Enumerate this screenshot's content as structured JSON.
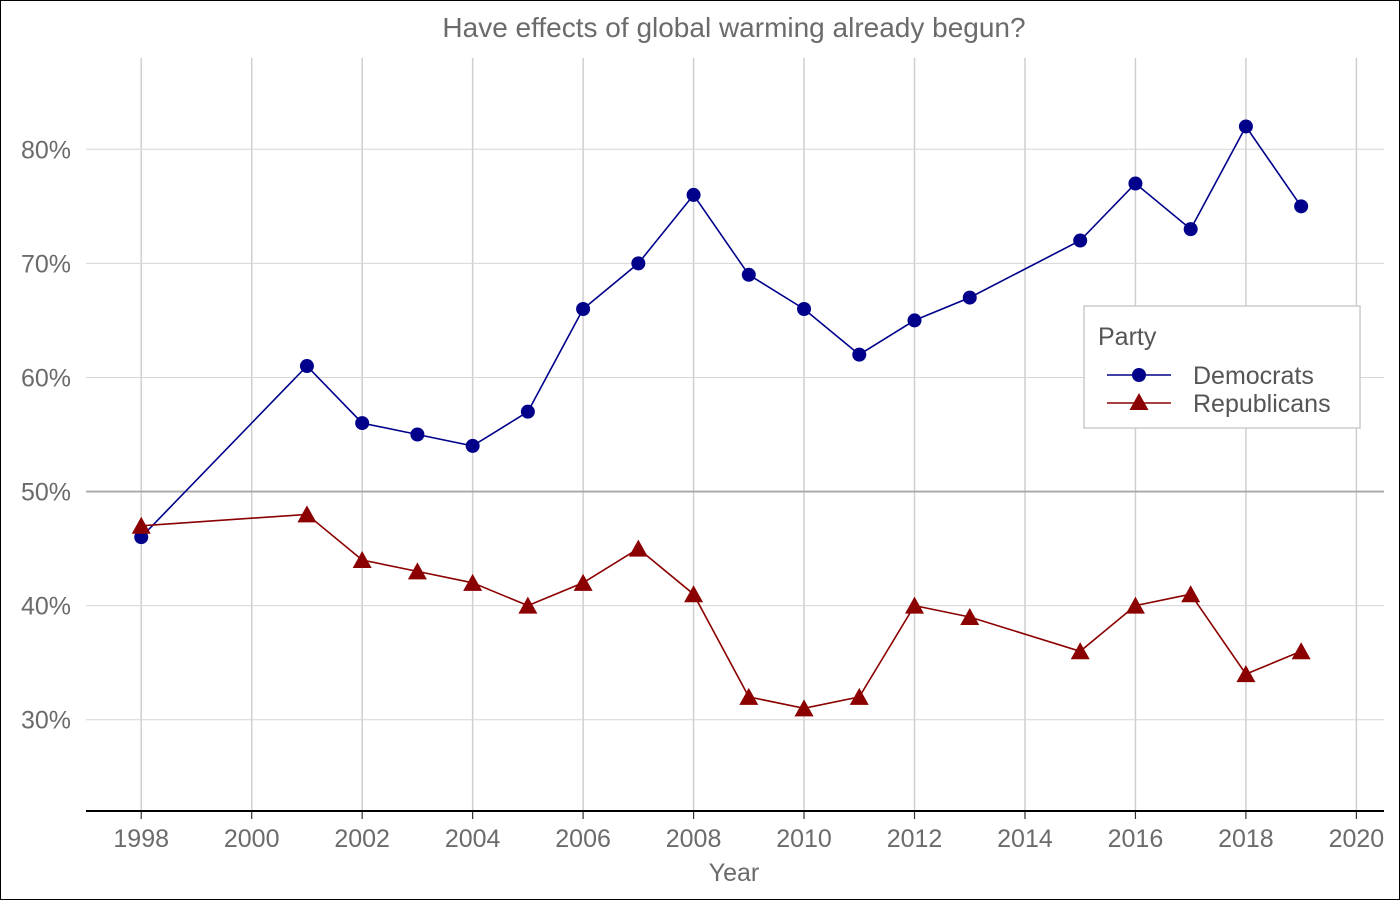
{
  "chart_data": {
    "type": "line",
    "title": "Have effects of global warming already begun?",
    "xlabel": "Year",
    "ylabel": "",
    "x_ticks": [
      "1998",
      "2000",
      "2002",
      "2004",
      "2006",
      "2008",
      "2010",
      "2012",
      "2014",
      "2016",
      "2018",
      "2020"
    ],
    "y_ticks": [
      "30%",
      "40%",
      "50%",
      "60%",
      "70%",
      "80%"
    ],
    "xlim": [
      1997,
      2020.5
    ],
    "ylim": [
      0.22,
      0.88
    ],
    "reference_line": 0.5,
    "grid": true,
    "legend": {
      "title": "Party",
      "placement": "right"
    },
    "series": [
      {
        "name": "Democrats",
        "color": "#00008B",
        "marker": "circle",
        "x": [
          1998,
          2001,
          2002,
          2003,
          2004,
          2005,
          2006,
          2007,
          2008,
          2009,
          2010,
          2011,
          2012,
          2013,
          2015,
          2016,
          2017,
          2018,
          2019
        ],
        "values": [
          0.46,
          0.61,
          0.56,
          0.55,
          0.54,
          0.57,
          0.66,
          0.7,
          0.76,
          0.69,
          0.66,
          0.62,
          0.65,
          0.67,
          0.72,
          0.77,
          0.73,
          0.82,
          0.75
        ]
      },
      {
        "name": "Republicans",
        "color": "#8B0000",
        "marker": "triangle",
        "x": [
          1998,
          2001,
          2002,
          2003,
          2004,
          2005,
          2006,
          2007,
          2008,
          2009,
          2010,
          2011,
          2012,
          2013,
          2015,
          2016,
          2017,
          2018,
          2019
        ],
        "values": [
          0.47,
          0.48,
          0.44,
          0.43,
          0.42,
          0.4,
          0.42,
          0.45,
          0.41,
          0.32,
          0.31,
          0.32,
          0.4,
          0.39,
          0.36,
          0.4,
          0.41,
          0.34,
          0.36
        ]
      }
    ]
  }
}
